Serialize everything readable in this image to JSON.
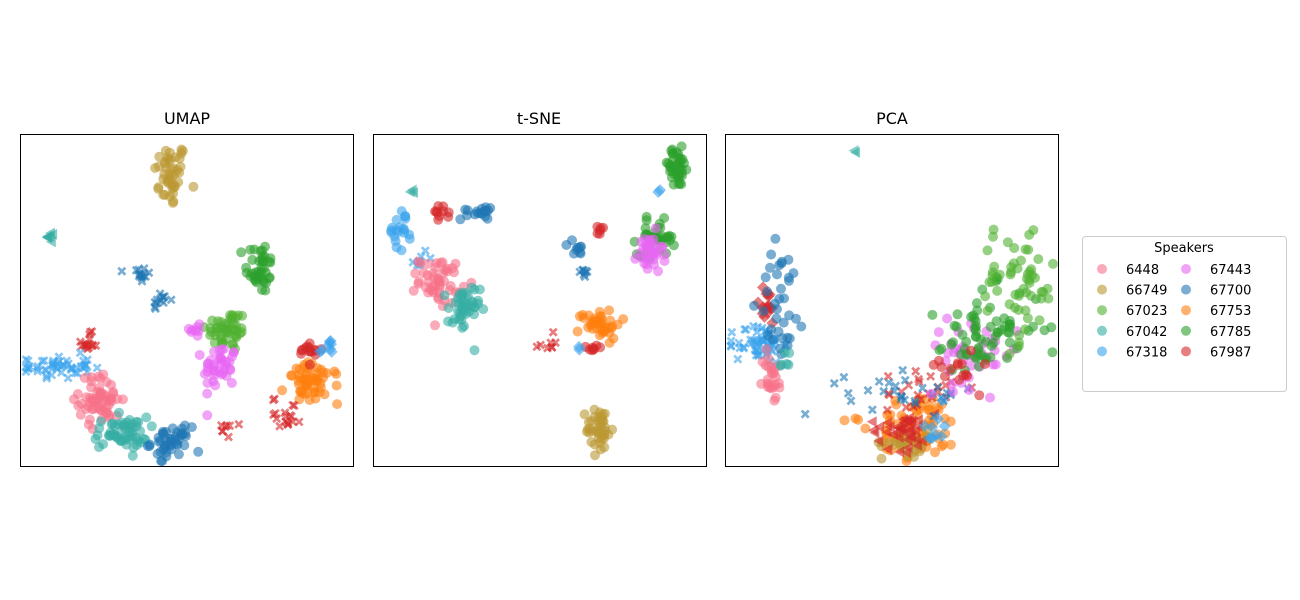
{
  "chart_data": [
    {
      "type": "scatter",
      "title": "UMAP",
      "xlabel": "",
      "ylabel": "",
      "xlim": [
        0,
        100
      ],
      "ylim": [
        0,
        100
      ],
      "ticks": false,
      "clusters": [
        {
          "speaker": "66749",
          "x": 45,
          "y": 88,
          "sx": 2.5,
          "sy": 5,
          "marker": "circle",
          "n": 45
        },
        {
          "speaker": "67042",
          "x": 9,
          "y": 69,
          "sx": 0.8,
          "sy": 0.8,
          "marker": "triangle",
          "n": 8
        },
        {
          "speaker": "67785",
          "x": 72,
          "y": 60,
          "sx": 2.2,
          "sy": 4,
          "marker": "circle",
          "n": 40
        },
        {
          "speaker": "67700",
          "x": 36,
          "y": 58,
          "sx": 1.4,
          "sy": 1.8,
          "marker": "x",
          "n": 14
        },
        {
          "speaker": "67700",
          "x": 42,
          "y": 50,
          "sx": 1.4,
          "sy": 1.4,
          "marker": "x",
          "n": 12
        },
        {
          "speaker": "67023",
          "x": 62,
          "y": 41,
          "sx": 3.2,
          "sy": 3.2,
          "marker": "circle",
          "n": 50
        },
        {
          "speaker": "67443",
          "x": 53,
          "y": 41,
          "sx": 1.5,
          "sy": 1.2,
          "marker": "circle",
          "n": 8
        },
        {
          "speaker": "67443",
          "x": 60,
          "y": 30,
          "sx": 2.5,
          "sy": 3.5,
          "marker": "circle",
          "n": 40
        },
        {
          "speaker": "67987",
          "x": 20,
          "y": 37,
          "sx": 1.5,
          "sy": 1.5,
          "marker": "x",
          "n": 16
        },
        {
          "speaker": "67318",
          "x": 11,
          "y": 30,
          "sx": 5,
          "sy": 1.8,
          "marker": "x",
          "n": 50
        },
        {
          "speaker": "6448",
          "x": 24,
          "y": 20,
          "sx": 3.2,
          "sy": 3.8,
          "marker": "circle",
          "n": 60
        },
        {
          "speaker": "67042",
          "x": 30,
          "y": 10,
          "sx": 4,
          "sy": 2.4,
          "marker": "circle",
          "n": 55
        },
        {
          "speaker": "67700",
          "x": 45,
          "y": 7,
          "sx": 3,
          "sy": 2.4,
          "marker": "circle",
          "n": 45
        },
        {
          "speaker": "67753",
          "x": 88,
          "y": 25,
          "sx": 4,
          "sy": 3,
          "marker": "circle",
          "n": 55
        },
        {
          "speaker": "67987",
          "x": 87,
          "y": 35,
          "sx": 1.8,
          "sy": 1.6,
          "marker": "circle",
          "n": 15
        },
        {
          "speaker": "67318",
          "x": 93,
          "y": 36,
          "sx": 1.4,
          "sy": 1.4,
          "marker": "diamond",
          "n": 8
        },
        {
          "speaker": "67987",
          "x": 80,
          "y": 16,
          "sx": 2.2,
          "sy": 2.4,
          "marker": "x",
          "n": 18
        },
        {
          "speaker": "67987",
          "x": 62,
          "y": 11,
          "sx": 1.2,
          "sy": 1.2,
          "marker": "x",
          "n": 8
        }
      ]
    },
    {
      "type": "scatter",
      "title": "t-SNE",
      "xlabel": "",
      "ylabel": "",
      "xlim": [
        0,
        100
      ],
      "ylim": [
        0,
        100
      ],
      "ticks": false,
      "clusters": [
        {
          "speaker": "67042",
          "x": 11,
          "y": 83,
          "sx": 0.5,
          "sy": 0.5,
          "marker": "triangle",
          "n": 3
        },
        {
          "speaker": "67987",
          "x": 20,
          "y": 76,
          "sx": 1.2,
          "sy": 1.2,
          "marker": "circle",
          "n": 10
        },
        {
          "speaker": "67700",
          "x": 31,
          "y": 77,
          "sx": 2.4,
          "sy": 1.3,
          "marker": "circle",
          "n": 18
        },
        {
          "speaker": "67318",
          "x": 8,
          "y": 71,
          "sx": 1.8,
          "sy": 3,
          "marker": "circle",
          "n": 20
        },
        {
          "speaker": "67318",
          "x": 14,
          "y": 63,
          "sx": 1,
          "sy": 1.5,
          "marker": "x",
          "n": 8
        },
        {
          "speaker": "6448",
          "x": 20,
          "y": 56,
          "sx": 3.2,
          "sy": 3.5,
          "marker": "circle",
          "n": 50
        },
        {
          "speaker": "67042",
          "x": 27,
          "y": 47,
          "sx": 2.4,
          "sy": 4,
          "marker": "circle",
          "n": 45
        },
        {
          "speaker": "67785",
          "x": 91,
          "y": 90,
          "sx": 2.2,
          "sy": 3,
          "marker": "circle",
          "n": 40
        },
        {
          "speaker": "67318",
          "x": 86,
          "y": 83,
          "sx": 0.5,
          "sy": 0.5,
          "marker": "diamond",
          "n": 2
        },
        {
          "speaker": "67785",
          "x": 85,
          "y": 69,
          "sx": 2.8,
          "sy": 2.6,
          "marker": "circle",
          "n": 40
        },
        {
          "speaker": "67443",
          "x": 83,
          "y": 64,
          "sx": 2,
          "sy": 3.2,
          "marker": "circle",
          "n": 35
        },
        {
          "speaker": "67987",
          "x": 68,
          "y": 71,
          "sx": 1,
          "sy": 0.8,
          "marker": "circle",
          "n": 6
        },
        {
          "speaker": "67700",
          "x": 61,
          "y": 65,
          "sx": 1.2,
          "sy": 1.8,
          "marker": "circle",
          "n": 10
        },
        {
          "speaker": "67700",
          "x": 63,
          "y": 59,
          "sx": 1,
          "sy": 1,
          "marker": "x",
          "n": 8
        },
        {
          "speaker": "67753",
          "x": 68,
          "y": 43,
          "sx": 3.2,
          "sy": 2.2,
          "marker": "circle",
          "n": 40
        },
        {
          "speaker": "67987",
          "x": 66,
          "y": 36,
          "sx": 1.2,
          "sy": 1,
          "marker": "circle",
          "n": 8
        },
        {
          "speaker": "67987",
          "x": 52,
          "y": 37,
          "sx": 1.2,
          "sy": 1,
          "marker": "x",
          "n": 8
        },
        {
          "speaker": "67318",
          "x": 62,
          "y": 36,
          "sx": 0.6,
          "sy": 0.6,
          "marker": "diamond",
          "n": 2
        },
        {
          "speaker": "66749",
          "x": 68,
          "y": 11,
          "sx": 2,
          "sy": 3.5,
          "marker": "circle",
          "n": 40
        }
      ]
    },
    {
      "type": "scatter",
      "title": "PCA",
      "xlabel": "",
      "ylabel": "",
      "xlim": [
        0,
        100
      ],
      "ylim": [
        0,
        100
      ],
      "ticks": false,
      "clusters": [
        {
          "speaker": "67042",
          "x": 39,
          "y": 95,
          "sx": 0.3,
          "sy": 0.3,
          "marker": "triangle",
          "n": 2
        },
        {
          "speaker": "67318",
          "x": 10,
          "y": 37,
          "sx": 3.5,
          "sy": 3,
          "marker": "x",
          "n": 60
        },
        {
          "speaker": "6448",
          "x": 14,
          "y": 27,
          "sx": 1.5,
          "sy": 4,
          "marker": "circle",
          "n": 25
        },
        {
          "speaker": "67987",
          "x": 12,
          "y": 48,
          "sx": 1.8,
          "sy": 3,
          "marker": "diamond",
          "n": 18
        },
        {
          "speaker": "67700",
          "x": 17,
          "y": 50,
          "sx": 3.5,
          "sy": 9,
          "marker": "circle",
          "n": 35
        },
        {
          "speaker": "67042",
          "x": 18,
          "y": 32,
          "sx": 1.5,
          "sy": 2,
          "marker": "circle",
          "n": 6
        },
        {
          "speaker": "67753",
          "x": 58,
          "y": 12,
          "sx": 6,
          "sy": 5,
          "marker": "circle",
          "n": 70
        },
        {
          "speaker": "66749",
          "x": 55,
          "y": 7,
          "sx": 4,
          "sy": 2,
          "marker": "circle",
          "n": 30
        },
        {
          "speaker": "67987",
          "x": 53,
          "y": 11,
          "sx": 5,
          "sy": 3,
          "marker": "triangle",
          "n": 40
        },
        {
          "speaker": "67987",
          "x": 58,
          "y": 22,
          "sx": 5,
          "sy": 4,
          "marker": "x",
          "n": 25
        },
        {
          "speaker": "67700",
          "x": 56,
          "y": 22,
          "sx": 10,
          "sy": 3,
          "marker": "x",
          "n": 30
        },
        {
          "speaker": "67318",
          "x": 63,
          "y": 12,
          "sx": 2,
          "sy": 3,
          "marker": "diamond",
          "n": 10
        },
        {
          "speaker": "67443",
          "x": 74,
          "y": 34,
          "sx": 7,
          "sy": 5,
          "marker": "circle",
          "n": 40
        },
        {
          "speaker": "67785",
          "x": 80,
          "y": 42,
          "sx": 8,
          "sy": 6,
          "marker": "circle",
          "n": 50
        },
        {
          "speaker": "67023",
          "x": 88,
          "y": 55,
          "sx": 6,
          "sy": 9,
          "marker": "circle",
          "n": 55
        },
        {
          "speaker": "67785",
          "x": 75,
          "y": 36,
          "sx": 5,
          "sy": 4,
          "marker": "circle",
          "n": 20
        },
        {
          "speaker": "67987",
          "x": 68,
          "y": 30,
          "sx": 4,
          "sy": 3,
          "marker": "circle",
          "n": 15
        },
        {
          "speaker": "67753",
          "x": 38,
          "y": 15,
          "sx": 1.5,
          "sy": 2,
          "marker": "circle",
          "n": 3
        }
      ]
    }
  ],
  "legend": {
    "title": "Speakers",
    "placement": "right",
    "items": [
      {
        "label": "6448",
        "color": "#f77189"
      },
      {
        "label": "66749",
        "color": "#bb9832"
      },
      {
        "label": "67023",
        "color": "#50b131"
      },
      {
        "label": "67042",
        "color": "#36ada4"
      },
      {
        "label": "67318",
        "color": "#3ba3ec"
      },
      {
        "label": "67443",
        "color": "#e866f4"
      },
      {
        "label": "67700",
        "color": "#1f77b4"
      },
      {
        "label": "67753",
        "color": "#ff7f0e"
      },
      {
        "label": "67785",
        "color": "#2ca02c"
      },
      {
        "label": "67987",
        "color": "#d62728"
      }
    ]
  },
  "speaker_colors": {
    "6448": "#f77189",
    "66749": "#bb9832",
    "67023": "#50b131",
    "67042": "#36ada4",
    "67318": "#3ba3ec",
    "67443": "#e866f4",
    "67700": "#1f77b4",
    "67753": "#ff7f0e",
    "67785": "#2ca02c",
    "67987": "#d62728"
  }
}
